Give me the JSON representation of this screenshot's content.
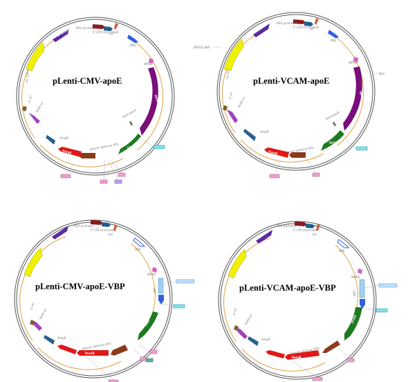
{
  "maps": [
    {
      "title": "pLenti-CMV-apoE",
      "labels": {
        "rsv_promoter": "RSV promoter",
        "utr": "5' LTR (truncated)",
        "cmv": "CMV",
        "spacer": "Spacer optional ATG",
        "apoe": "apoE",
        "ampr": "AmpR",
        "sv40": "SV40 ori",
        "f1": "f1 ori",
        "lacp": "lac promoter",
        "wpre": "WPRE",
        "psi": "psi",
        "rre": "RRE",
        "puro": "PuroR",
        "hgh": "hGH polyA",
        "pgk": "PGK promoter",
        "ltr3": "3' LTR (ΔU3)"
      },
      "tags": {
        "right_tag": "",
        "bottom_tags": [
          "",
          "",
          "",
          ""
        ]
      }
    },
    {
      "title": "pLenti-VCAM-apoE",
      "labels": {
        "rsv_promoter": "RSV promoter",
        "utr": "5' LTR (truncated)",
        "vcam": "VCAM",
        "spacer": "Spacer optional ATG",
        "apoe": "apoE",
        "ampr": "AmpR",
        "sv40": "SV40 ori",
        "f1": "f1 ori",
        "lacp": "lac promoter",
        "wpre": "WPRE",
        "psi": "psi",
        "rre": "RRE",
        "puro": "PuroR",
        "hgh": "hGH polyA",
        "left_site": "BRSG2 NsiI",
        "right_site": "NsiI"
      },
      "tags": {
        "right_tag": "",
        "bottom_tags": [
          "",
          ""
        ]
      }
    },
    {
      "title": "pLenti-CMV-apoE-VBP",
      "labels": {
        "rsv_promoter": "RSV promoter",
        "utr": "5' LTR (truncated)",
        "cmv": "CMV",
        "spacer": "Spacer optional ATG",
        "apoe": "apoE",
        "ampr": "AmpR",
        "f1": "f1 ori",
        "puro": "PuroR",
        "wpre": "WPRE",
        "psi": "psi",
        "rre": "RRE",
        "sv40": "SV40 ori",
        "vbp": "VBP"
      },
      "tags": {
        "right_tag": "",
        "right_tag2": "",
        "bottom_tags": [
          "",
          "",
          "",
          ""
        ]
      }
    },
    {
      "title": "pLenti-VCAM-apoE-VBP",
      "labels": {
        "rsv_promoter": "RSV promoter",
        "utr": "5' LTR (truncated)",
        "vcam": "VCAM",
        "spacer": "Spacer optional ATG",
        "apoe": "apoE",
        "ampr": "AmpR",
        "f1": "f1 ori",
        "puro": "PuroR",
        "wpre": "WPRE",
        "psi": "psi",
        "rre": "RRE",
        "sv40": "SV40 ori",
        "vbp": "VBP"
      },
      "tags": {
        "right_tag": "",
        "right_tag2": "",
        "bottom_tags": [
          "",
          ""
        ]
      }
    }
  ],
  "colors": {
    "ring": "#555555",
    "inner_arc": "#e0a040",
    "rsv": "#8b1a1a",
    "utr_blue": "#1f5f8b",
    "psi": "#d06030",
    "rre": "#3060e0",
    "pink": "#d060c0",
    "purple_cds": "#7a0e7a",
    "green": "#1e7a1e",
    "brown": "#8b3a1a",
    "red": "#e01818",
    "steelblue": "#2a6090",
    "violet": "#a040c0",
    "olive": "#7a6020",
    "yellow": "#f0f000",
    "indigo": "#5a2aa0",
    "cyan_tag": "#7fe0f0",
    "pink_tag": "#f0a0d0",
    "lightblue": "#a0d0f0"
  }
}
